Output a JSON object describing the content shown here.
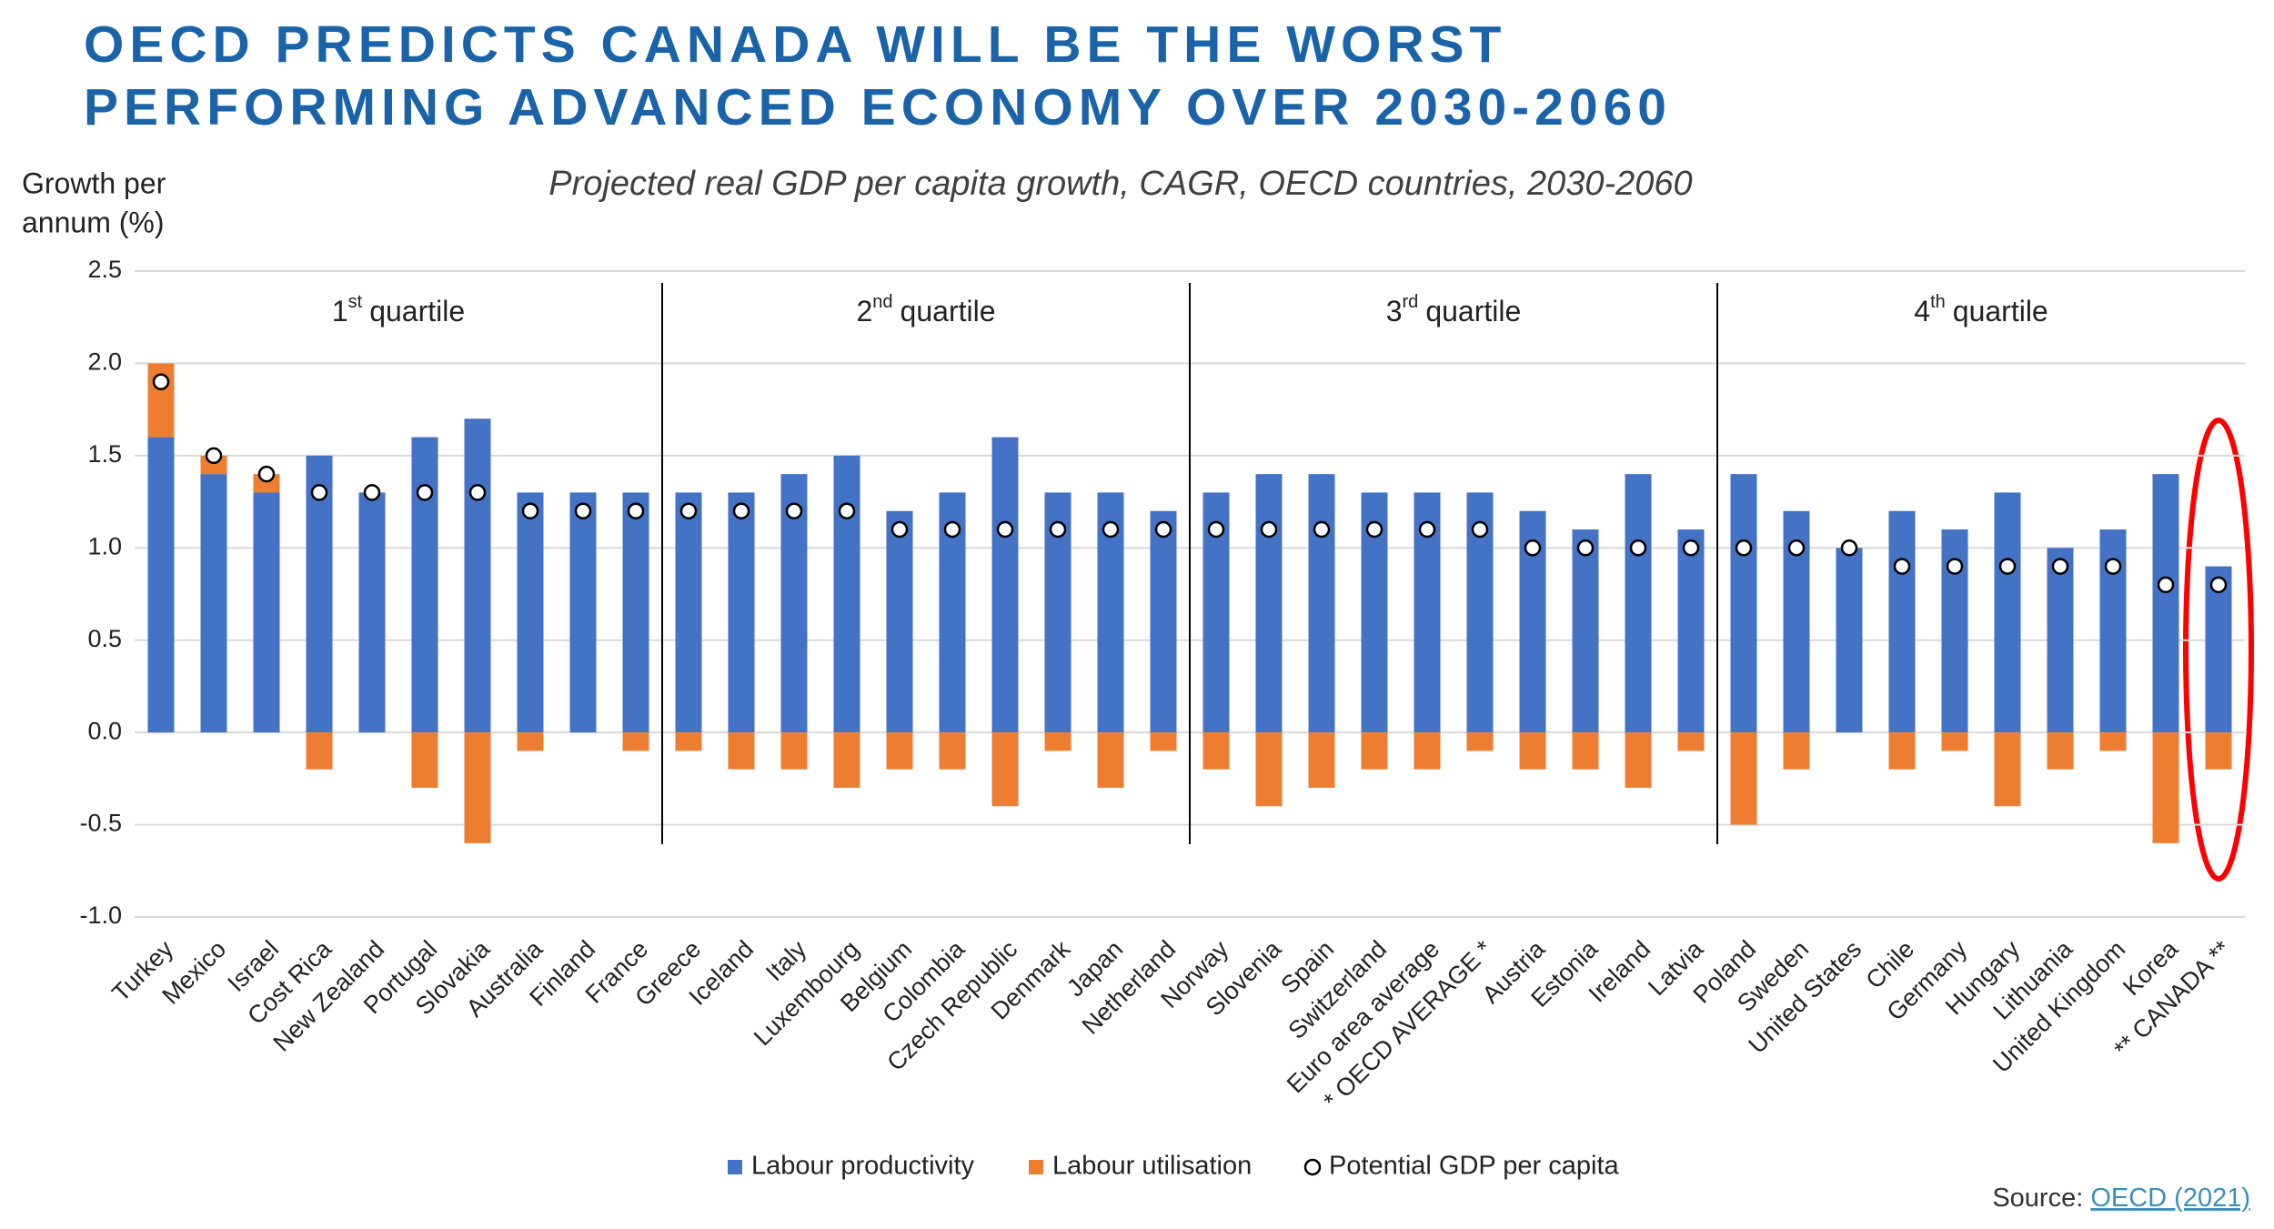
{
  "chart_data": {
    "type": "bar",
    "stacked": true,
    "title": [
      "OECD PREDICTS CANADA WILL BE THE WORST",
      "PERFORMING ADVANCED ECONOMY OVER 2030-2060"
    ],
    "subtitle": "Projected real GDP per capita growth, CAGR, OECD countries, 2030-2060",
    "y_label": [
      "Growth per",
      "annum (%)"
    ],
    "annotations": [
      {
        "num": "1",
        "sup": "st",
        "text": "quartile"
      },
      {
        "num": "2",
        "sup": "nd",
        "text": "quartile"
      },
      {
        "num": "3",
        "sup": "rd",
        "text": "quartile"
      },
      {
        "num": "4",
        "sup": "th",
        "text": "quartile"
      }
    ],
    "categories": [
      "Turkey",
      "Mexico",
      "Israel",
      "Cost Rica",
      "New Zealand",
      "Portugal",
      "Slovakia",
      "Australia",
      "Finland",
      "France",
      "Greece",
      "Iceland",
      "Italy",
      "Luxembourg",
      "Belgium",
      "Colombia",
      "Czech Republic",
      "Denmark",
      "Japan",
      "Netherland",
      "Norway",
      "Slovenia",
      "Spain",
      "Switzerland",
      "Euro area average",
      "* OECD AVERAGE *",
      "Austria",
      "Estonia",
      "Ireland",
      "Latvia",
      "Poland",
      "Sweden",
      "United States",
      "Chile",
      "Germany",
      "Hungary",
      "Lithuania",
      "United Kingdom",
      "Korea",
      "** CANADA **"
    ],
    "series": [
      {
        "name": "Labour productivity",
        "color": "#4472c4",
        "values": [
          1.6,
          1.4,
          1.3,
          1.5,
          1.3,
          1.6,
          1.7,
          1.3,
          1.3,
          1.3,
          1.3,
          1.3,
          1.4,
          1.5,
          1.2,
          1.3,
          1.6,
          1.3,
          1.3,
          1.2,
          1.3,
          1.4,
          1.4,
          1.3,
          1.3,
          1.3,
          1.2,
          1.1,
          1.4,
          1.1,
          1.4,
          1.2,
          1.0,
          1.2,
          1.1,
          1.3,
          1.0,
          1.1,
          1.4,
          0.9
        ]
      },
      {
        "name": "Labour utilisation",
        "color": "#ed7d31",
        "values": [
          0.4,
          0.1,
          0.1,
          -0.2,
          0,
          -0.3,
          -0.6,
          -0.1,
          0,
          -0.1,
          -0.1,
          -0.2,
          -0.2,
          -0.3,
          -0.2,
          -0.2,
          -0.4,
          -0.1,
          -0.3,
          -0.1,
          -0.2,
          -0.4,
          -0.3,
          -0.2,
          -0.2,
          -0.1,
          -0.2,
          -0.2,
          -0.3,
          -0.1,
          -0.5,
          -0.2,
          0,
          -0.2,
          -0.1,
          -0.4,
          -0.2,
          -0.1,
          -0.6,
          -0.2
        ]
      },
      {
        "name": "Potential GDP per capita",
        "type": "scatter",
        "color": "#ffffff",
        "values": [
          1.9,
          1.5,
          1.4,
          1.3,
          1.3,
          1.3,
          1.3,
          1.2,
          1.2,
          1.2,
          1.2,
          1.2,
          1.2,
          1.2,
          1.1,
          1.1,
          1.1,
          1.1,
          1.1,
          1.1,
          1.1,
          1.1,
          1.1,
          1.1,
          1.1,
          1.1,
          1.0,
          1.0,
          1.0,
          1.0,
          1.0,
          1.0,
          1.0,
          0.9,
          0.9,
          0.9,
          0.9,
          0.9,
          0.8,
          0.8
        ]
      }
    ],
    "ylim": [
      -1.0,
      2.5
    ],
    "yticks": [
      {
        "value": -1.0,
        "label": "-1.0"
      },
      -0.5,
      {
        "value": 0,
        "label": "0.0"
      },
      0.5,
      {
        "value": 1.0,
        "label": "1.0"
      },
      1.5,
      {
        "value": 2.0,
        "label": "2.0"
      },
      2.5
    ],
    "grid": true,
    "legend": "bottom",
    "source": {
      "prefix": "Source:",
      "link": "OECD (2021)"
    }
  }
}
